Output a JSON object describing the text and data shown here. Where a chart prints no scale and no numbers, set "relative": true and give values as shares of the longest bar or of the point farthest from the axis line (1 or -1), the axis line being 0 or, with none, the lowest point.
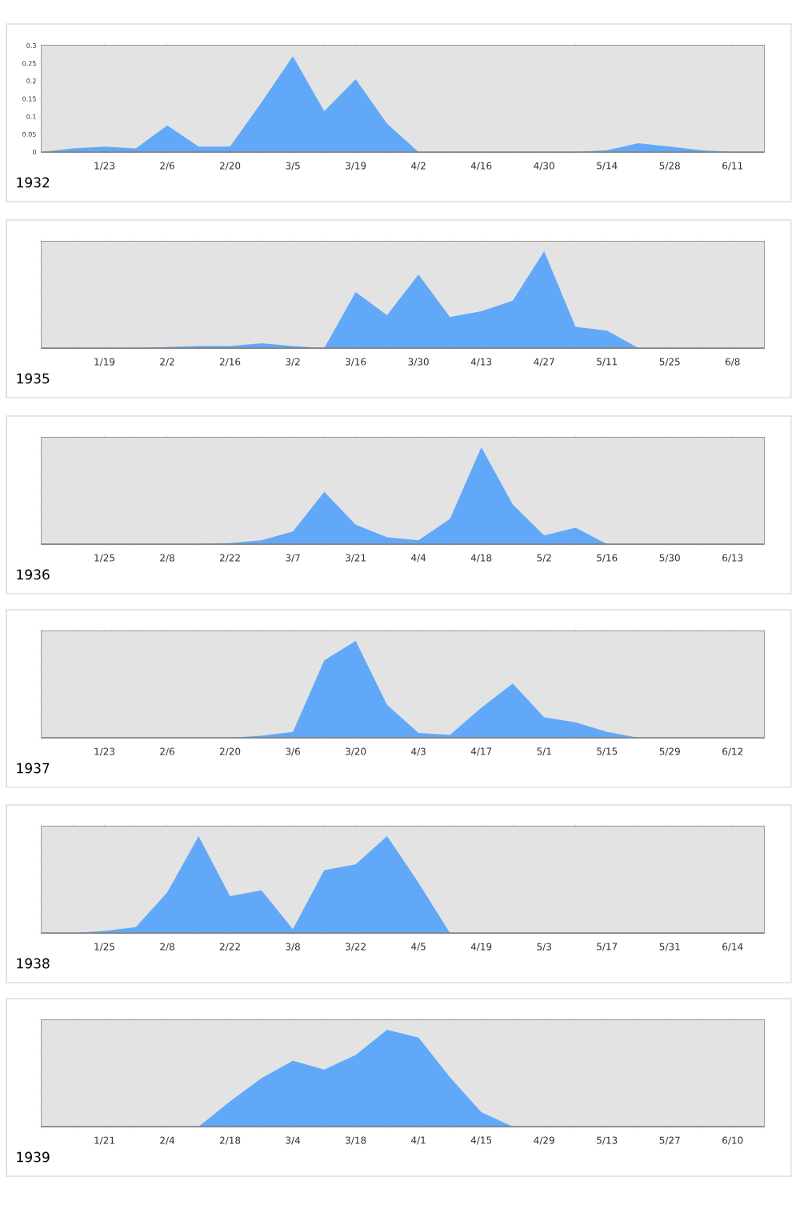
{
  "chart_data": [
    {
      "type": "area",
      "title": "1932",
      "color": "#62a8f8",
      "grid": "y",
      "ylim": [
        0,
        0.3
      ],
      "yticks": [
        0,
        0.05,
        0.1,
        0.15,
        0.2,
        0.25,
        0.3
      ],
      "categories": [
        null,
        null,
        "1/23",
        null,
        "2/6",
        null,
        "2/20",
        null,
        "3/5",
        null,
        "3/19",
        null,
        "4/2",
        null,
        "4/16",
        null,
        "4/30",
        null,
        "5/14",
        null,
        "5/28",
        null,
        "6/11",
        null
      ],
      "values": [
        0,
        0.01,
        0.015,
        0.01,
        0.075,
        0.015,
        0.015,
        0.14,
        0.27,
        0.115,
        0.205,
        0.08,
        0,
        0,
        0,
        0,
        0,
        0,
        0.005,
        0.025,
        0.015,
        0.005,
        0,
        0
      ]
    },
    {
      "type": "area",
      "title": "1935",
      "color": "#62a8f8",
      "grid": "y",
      "relative": true,
      "categories": [
        null,
        null,
        "1/19",
        null,
        "2/2",
        null,
        "2/16",
        null,
        "3/2",
        null,
        "3/16",
        null,
        "3/30",
        null,
        "4/13",
        null,
        "4/27",
        null,
        "5/11",
        null,
        "5/25",
        null,
        "6/8",
        null
      ],
      "values": [
        0,
        0,
        0,
        0,
        0.01,
        0.02,
        0.02,
        0.05,
        0.02,
        0,
        0.58,
        0.34,
        0.76,
        0.32,
        0.38,
        0.49,
        1,
        0.22,
        0.18,
        0,
        0,
        0,
        0,
        0
      ]
    },
    {
      "type": "area",
      "title": "1936",
      "color": "#62a8f8",
      "grid": "y",
      "relative": true,
      "categories": [
        null,
        null,
        "1/25",
        null,
        "2/8",
        null,
        "2/22",
        null,
        "3/7",
        null,
        "3/21",
        null,
        "4/4",
        null,
        "4/18",
        null,
        "5/2",
        null,
        "5/16",
        null,
        "5/30",
        null,
        "6/13",
        null
      ],
      "values": [
        0,
        0,
        0,
        0,
        0,
        0,
        0.01,
        0.04,
        0.13,
        0.54,
        0.2,
        0.07,
        0.04,
        0.26,
        1,
        0.41,
        0.09,
        0.17,
        0,
        0,
        0,
        0,
        0,
        0
      ]
    },
    {
      "type": "area",
      "title": "1937",
      "color": "#62a8f8",
      "grid": "y",
      "relative": true,
      "categories": [
        null,
        null,
        "1/23",
        null,
        "2/6",
        null,
        "2/20",
        null,
        "3/6",
        null,
        "3/20",
        null,
        "4/3",
        null,
        "4/17",
        null,
        "5/1",
        null,
        "5/15",
        null,
        "5/29",
        null,
        "6/12",
        null
      ],
      "values": [
        0,
        0,
        0,
        0,
        0,
        0,
        0,
        0.02,
        0.06,
        0.8,
        1,
        0.34,
        0.05,
        0.03,
        0.31,
        0.56,
        0.21,
        0.16,
        0.06,
        0,
        0,
        0,
        0,
        0
      ]
    },
    {
      "type": "area",
      "title": "1938",
      "color": "#62a8f8",
      "grid": "y",
      "relative": true,
      "categories": [
        null,
        null,
        "1/25",
        null,
        "2/8",
        null,
        "2/22",
        null,
        "3/8",
        null,
        "3/22",
        null,
        "4/5",
        null,
        "4/19",
        null,
        "5/3",
        null,
        "5/17",
        null,
        "5/31",
        null,
        "6/14",
        null
      ],
      "values": [
        0,
        0,
        0.02,
        0.06,
        0.42,
        1,
        0.38,
        0.44,
        0.04,
        0.65,
        0.71,
        1,
        0.52,
        0,
        0,
        0,
        0,
        0,
        0,
        0,
        0,
        0,
        0,
        0
      ]
    },
    {
      "type": "area",
      "title": "1939",
      "color": "#62a8f8",
      "grid": "y",
      "relative": true,
      "categories": [
        null,
        null,
        "1/21",
        null,
        "2/4",
        null,
        "2/18",
        null,
        "3/4",
        null,
        "3/18",
        null,
        "4/1",
        null,
        "4/15",
        null,
        "4/29",
        null,
        "5/13",
        null,
        "5/27",
        null,
        "6/10",
        null
      ],
      "values": [
        0,
        0,
        0,
        0,
        0,
        0,
        0.26,
        0.5,
        0.68,
        0.59,
        0.74,
        1,
        0.92,
        0.51,
        0.15,
        0,
        0,
        0,
        0,
        0,
        0,
        0,
        0,
        0
      ]
    }
  ]
}
